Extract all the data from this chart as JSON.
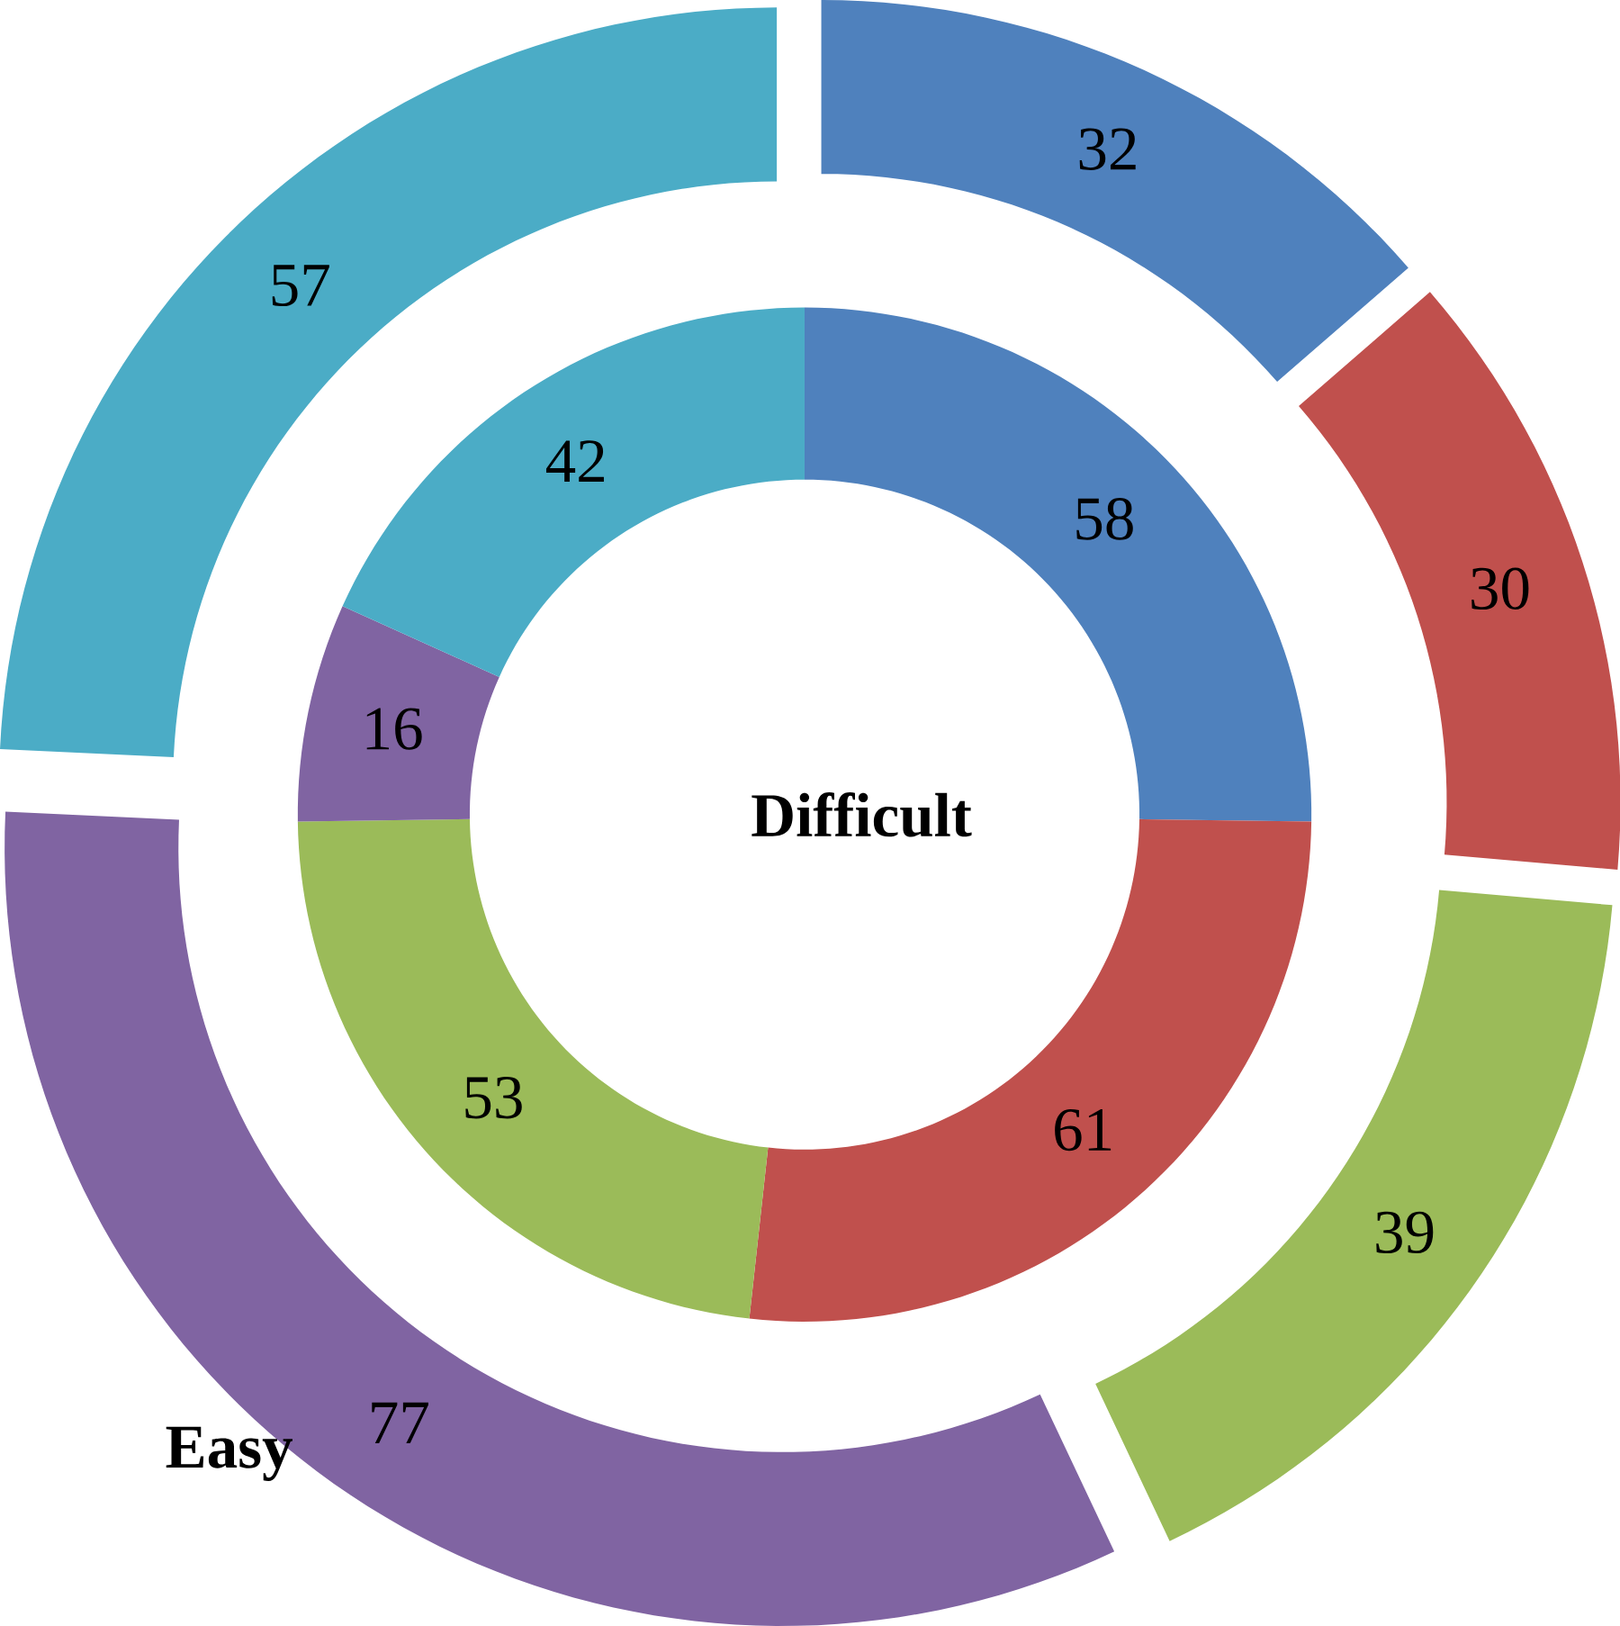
{
  "chart_data": {
    "type": "donut",
    "data_labels": true,
    "categories": [
      null,
      null,
      null,
      null,
      null
    ],
    "series": [
      {
        "name": "Difficult",
        "values": [
          58,
          61,
          53,
          16,
          42
        ],
        "colors": [
          "#4f81bd",
          "#c0504d",
          "#9bbb59",
          "#8064a2",
          "#4bacc6"
        ]
      },
      {
        "name": "Easy",
        "values": [
          32,
          30,
          39,
          77,
          57
        ],
        "colors": [
          "#4f81bd",
          "#c0504d",
          "#9bbb59",
          "#8064a2",
          "#4bacc6"
        ]
      }
    ]
  }
}
